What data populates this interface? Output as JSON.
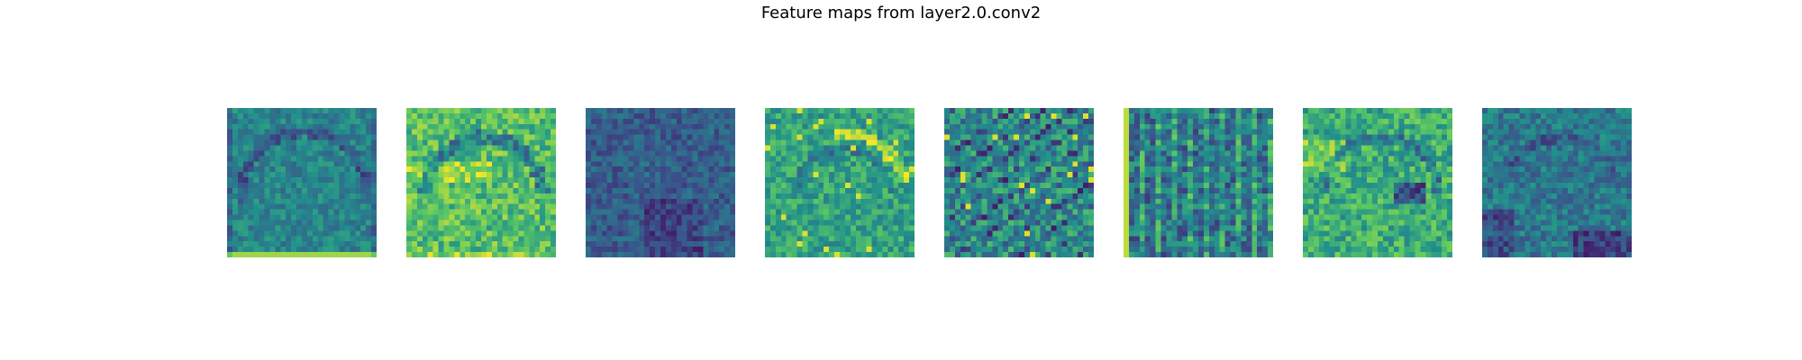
{
  "figure": {
    "title": "Feature maps from layer2.0.conv2"
  },
  "chart_data": {
    "type": "heatmap",
    "title": "Feature maps from layer2.0.conv2",
    "colormap": "viridis",
    "axes": "off",
    "grid": false,
    "panels": 8,
    "map_size": [
      28,
      28
    ],
    "value_range": [
      0,
      1
    ],
    "panel_descriptions": [
      {
        "mean": 0.45,
        "contrast": 0.12,
        "pattern": "arc_border"
      },
      {
        "mean": 0.7,
        "contrast": 0.18,
        "pattern": "bright_arc"
      },
      {
        "mean": 0.3,
        "contrast": 0.12,
        "pattern": "dark_noise"
      },
      {
        "mean": 0.58,
        "contrast": 0.16,
        "pattern": "arc_speckle"
      },
      {
        "mean": 0.5,
        "contrast": 0.2,
        "pattern": "diagonal_stripes"
      },
      {
        "mean": 0.38,
        "contrast": 0.2,
        "pattern": "vertical_stripes"
      },
      {
        "mean": 0.62,
        "contrast": 0.18,
        "pattern": "bright_arc_dark_center"
      },
      {
        "mean": 0.4,
        "contrast": 0.14,
        "pattern": "dark_lower_right"
      }
    ]
  }
}
